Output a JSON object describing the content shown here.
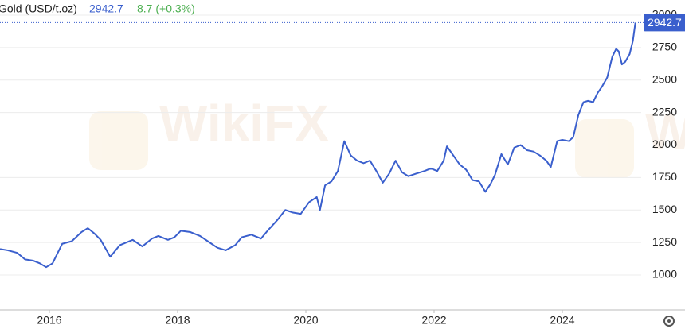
{
  "chart_data": {
    "type": "line",
    "title": "Gold (USD/t.oz)",
    "change": "8.7 (+0.3%)",
    "watermark": "WikiFX",
    "xlim": [
      2015.23,
      2025.23
    ],
    "xticks": [
      2016,
      2018,
      2020,
      2022,
      2024
    ],
    "ylim": [
      731,
      3116
    ],
    "yticks": [
      1000,
      1250,
      1500,
      1750,
      2000,
      2250,
      2500,
      2750,
      3000
    ],
    "grid": true,
    "series": [
      {
        "name": "Gold",
        "color": "#3a5fcd",
        "x": [
          2015.23,
          2015.35,
          2015.5,
          2015.62,
          2015.75,
          2015.85,
          2015.95,
          2016.05,
          2016.2,
          2016.35,
          2016.5,
          2016.6,
          2016.7,
          2016.8,
          2016.95,
          2017.1,
          2017.3,
          2017.45,
          2017.6,
          2017.7,
          2017.85,
          2017.95,
          2018.05,
          2018.2,
          2018.35,
          2018.5,
          2018.62,
          2018.75,
          2018.9,
          2019.0,
          2019.15,
          2019.3,
          2019.42,
          2019.55,
          2019.68,
          2019.8,
          2019.92,
          2020.05,
          2020.17,
          2020.22,
          2020.3,
          2020.4,
          2020.5,
          2020.6,
          2020.7,
          2020.8,
          2020.9,
          2021.0,
          2021.1,
          2021.2,
          2021.3,
          2021.4,
          2021.5,
          2021.6,
          2021.72,
          2021.85,
          2021.95,
          2022.05,
          2022.15,
          2022.2,
          2022.3,
          2022.4,
          2022.5,
          2022.6,
          2022.7,
          2022.8,
          2022.88,
          2022.95,
          2023.05,
          2023.15,
          2023.25,
          2023.35,
          2023.45,
          2023.55,
          2023.65,
          2023.75,
          2023.82,
          2023.92,
          2024.0,
          2024.1,
          2024.17,
          2024.25,
          2024.33,
          2024.4,
          2024.48,
          2024.55,
          2024.62,
          2024.7,
          2024.78,
          2024.84,
          2024.88,
          2024.93,
          2024.98,
          2025.05,
          2025.1,
          2025.14
        ],
        "values": [
          1200,
          1190,
          1170,
          1120,
          1110,
          1090,
          1060,
          1090,
          1240,
          1260,
          1330,
          1360,
          1320,
          1270,
          1140,
          1230,
          1270,
          1220,
          1280,
          1300,
          1270,
          1290,
          1340,
          1330,
          1300,
          1250,
          1210,
          1190,
          1230,
          1290,
          1310,
          1280,
          1350,
          1420,
          1500,
          1480,
          1470,
          1560,
          1600,
          1500,
          1690,
          1720,
          1800,
          2030,
          1920,
          1880,
          1860,
          1880,
          1800,
          1710,
          1780,
          1880,
          1790,
          1760,
          1780,
          1800,
          1820,
          1800,
          1880,
          1990,
          1920,
          1850,
          1810,
          1730,
          1720,
          1640,
          1700,
          1770,
          1930,
          1850,
          1980,
          2000,
          1960,
          1950,
          1920,
          1880,
          1830,
          2030,
          2040,
          2030,
          2060,
          2230,
          2330,
          2340,
          2330,
          2400,
          2450,
          2520,
          2680,
          2740,
          2720,
          2620,
          2640,
          2700,
          2800,
          2942.7
        ]
      }
    ]
  }
}
